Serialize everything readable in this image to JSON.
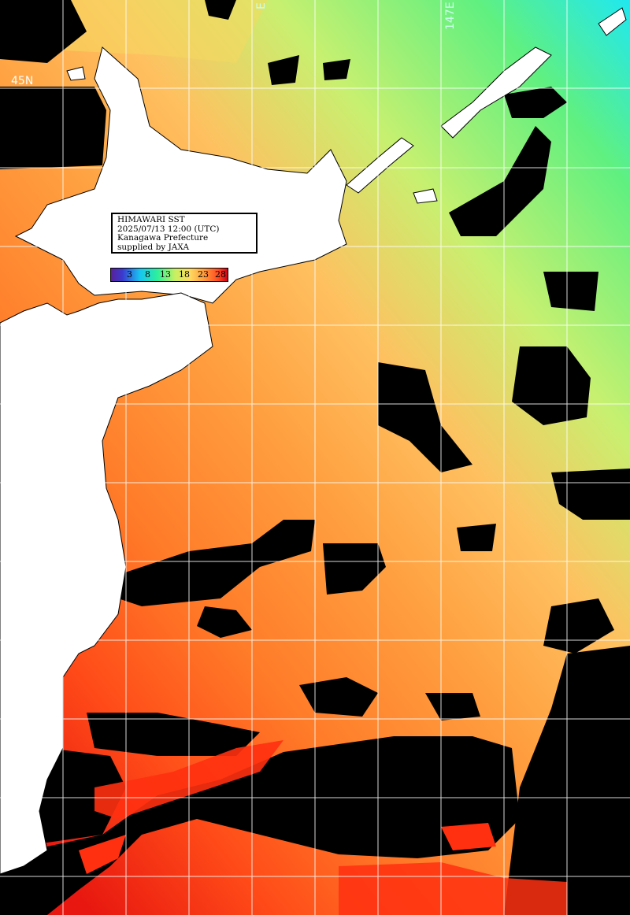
{
  "info": {
    "line1": "HIMAWARI SST",
    "line2": "2025/07/13 12:00 (UTC)",
    "line3": "Kanagawa Prefecture",
    "line4": "supplied by JAXA"
  },
  "legend": {
    "ticks": [
      "3",
      "8",
      "13",
      "18",
      "23",
      "28"
    ]
  },
  "labels": {
    "lat": "45N",
    "lon_left": "E",
    "lon_right": "147E"
  }
}
